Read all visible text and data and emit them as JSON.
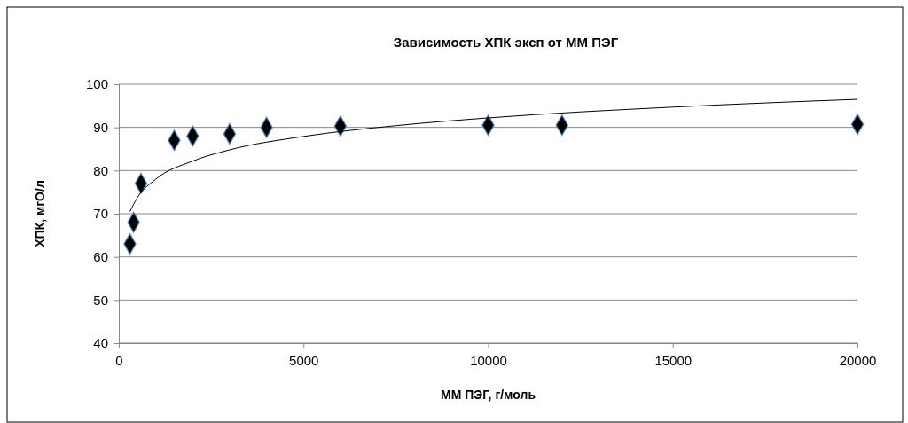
{
  "chart_data": {
    "type": "scatter",
    "title": "Зависимость ХПК эксп от ММ ПЭГ",
    "xlabel": "ММ ПЭГ, г/моль",
    "ylabel": "ХПК, мгО/л",
    "xlim": [
      0,
      20000
    ],
    "xticks": [
      0,
      5000,
      10000,
      15000,
      20000
    ],
    "ylim": [
      40,
      100
    ],
    "yticks": [
      40,
      50,
      60,
      70,
      80,
      90,
      100
    ],
    "grid": "y",
    "series": [
      {
        "color": "#000000",
        "marker": "diamond",
        "x": [
          300,
          400,
          600,
          1500,
          2000,
          3000,
          4000,
          6000,
          10000,
          12000,
          20000
        ],
        "values": [
          63,
          68,
          77,
          87,
          88,
          88.5,
          90,
          90.3,
          90.5,
          90.5,
          90.7
        ]
      },
      {
        "type": "line",
        "color": "#000000",
        "marker": "none",
        "line_style": "solid",
        "x": [
          300,
          500,
          1000,
          2000,
          3000,
          5000,
          7500,
          10000,
          15000,
          20000
        ],
        "values": [
          70.5,
          73.7,
          78.0,
          82.2,
          84.8,
          87.9,
          90.4,
          92.2,
          94.7,
          96.5
        ]
      }
    ]
  }
}
